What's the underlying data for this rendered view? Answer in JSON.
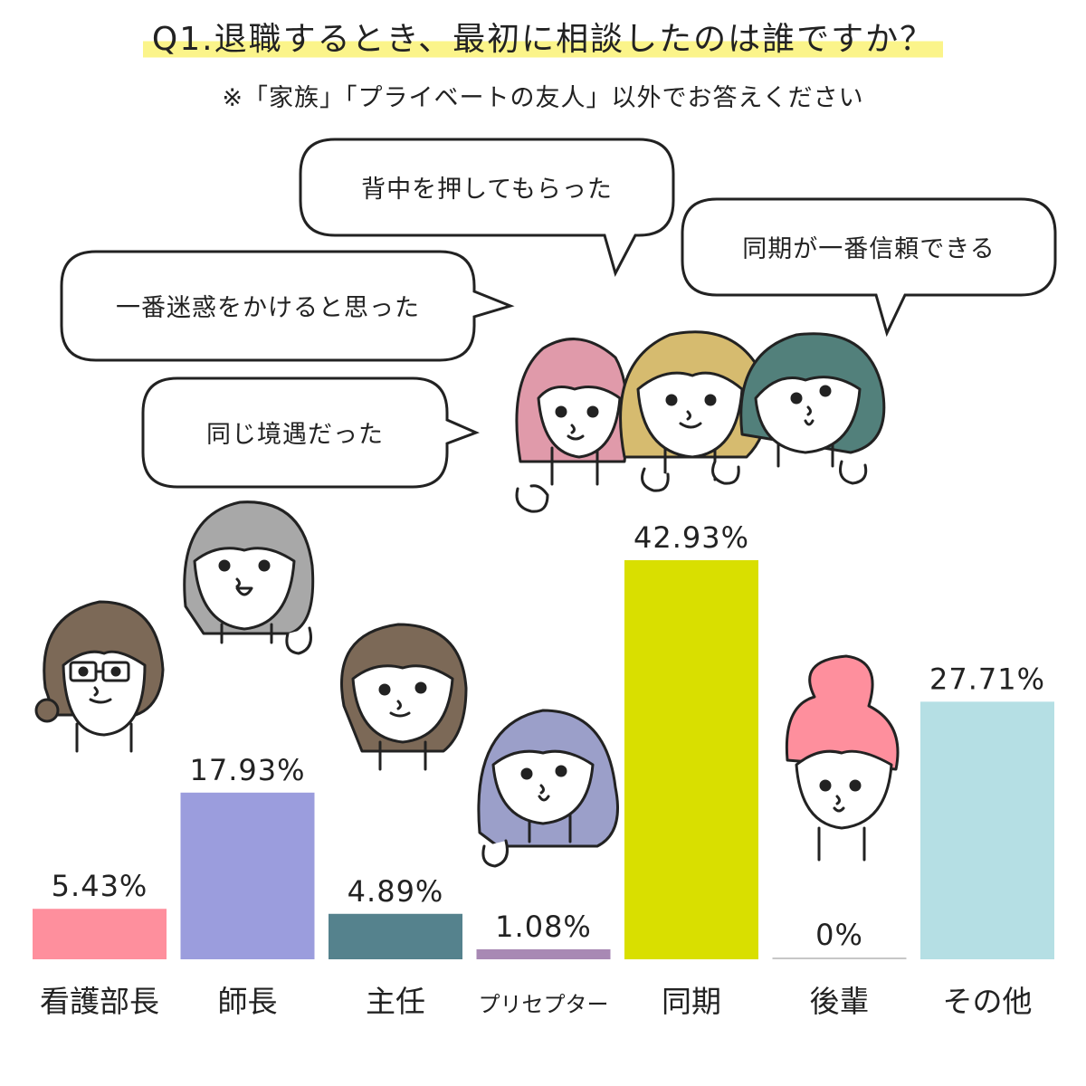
{
  "title": "Q1.退職するとき、最初に相談したのは誰ですか？",
  "subtitle": "※「家族」「プライベートの友人」以外でお答えください",
  "bubbles": [
    {
      "text": "背中を押してもらった"
    },
    {
      "text": "同期が一番信頼できる"
    },
    {
      "text": "一番迷惑をかけると思った"
    },
    {
      "text": "同じ境遇だった"
    }
  ],
  "chart_data": {
    "type": "bar",
    "categories": [
      "看護部長",
      "師長",
      "主任",
      "プリセプター",
      "同期",
      "後輩",
      "その他"
    ],
    "values": [
      5.43,
      17.93,
      4.89,
      1.08,
      42.93,
      0,
      27.71
    ],
    "value_labels": [
      "5.43%",
      "17.93%",
      "4.89%",
      "1.08%",
      "42.93%",
      "0%",
      "27.71%"
    ],
    "colors": [
      "#fe8f9d",
      "#9b9ddd",
      "#55828d",
      "#a889b4",
      "#d9df00",
      "#c7c7c7",
      "#b5dfe4"
    ],
    "ylim": [
      0,
      45
    ],
    "grid": false
  }
}
